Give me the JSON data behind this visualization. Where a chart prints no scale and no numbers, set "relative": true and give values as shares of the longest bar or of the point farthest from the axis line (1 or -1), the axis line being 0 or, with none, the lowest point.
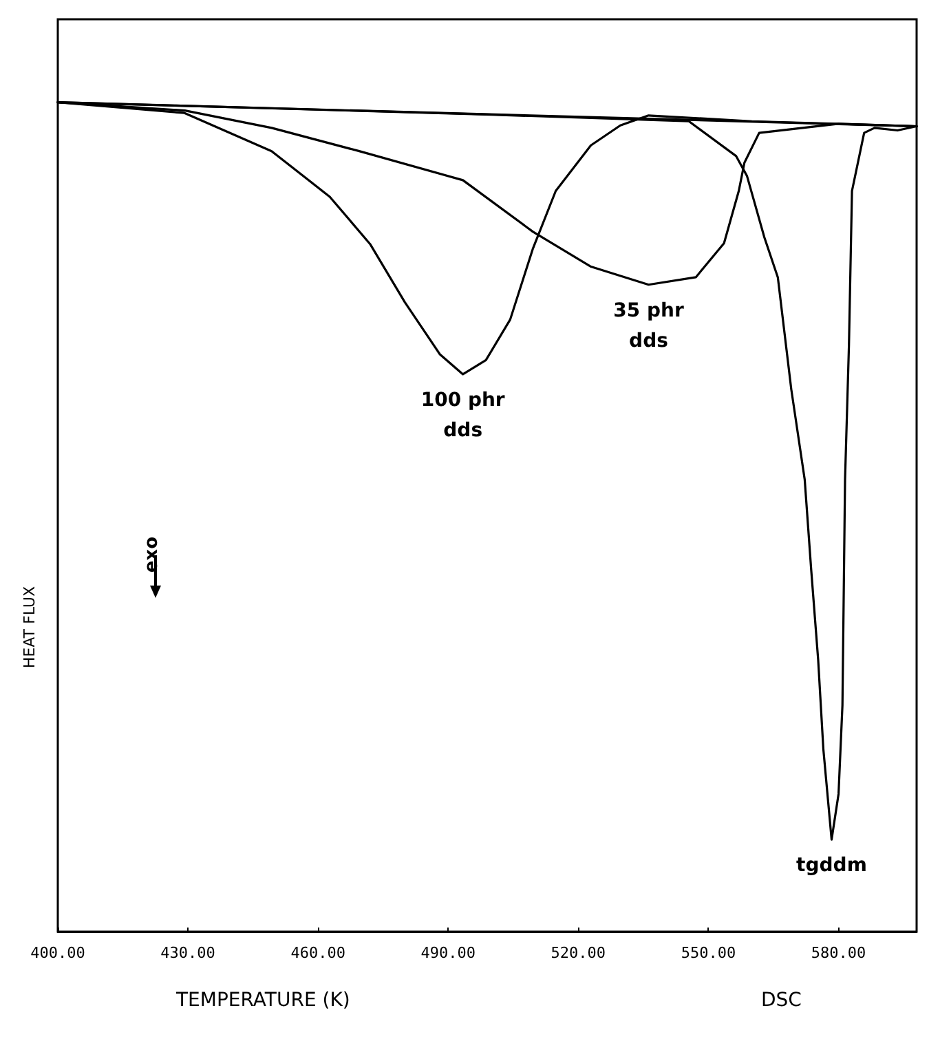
{
  "chart_data": {
    "type": "line",
    "relative": true,
    "xlabel": "TEMPERATURE (K)",
    "ylabel": "HEAT FLUX",
    "annotations": [
      "exo",
      "DSC"
    ],
    "xlim": [
      400,
      598
    ],
    "xticks": [
      {
        "value": 400,
        "label": "400.00"
      },
      {
        "value": 430,
        "label": "430.00"
      },
      {
        "value": 460,
        "label": "460.00"
      },
      {
        "value": 490,
        "label": "490.00"
      },
      {
        "value": 520,
        "label": "520.00"
      },
      {
        "value": 550,
        "label": "550.00"
      },
      {
        "value": 580,
        "label": "580.00"
      }
    ],
    "tick_labels": "x",
    "marker": "none",
    "line_style": "solid",
    "series": [
      {
        "color": "#000000",
        "x": [
          400,
          598
        ],
        "values": [
          1,
          0.971
        ]
      },
      {
        "name": "100 phr\ndds",
        "color": "#000000",
        "x": [
          400,
          429.2,
          449.3,
          462.7,
          472,
          480,
          488.1,
          493.4,
          498.7,
          504.3,
          509.5,
          514.8,
          522.9,
          529.7,
          536.2,
          560,
          598
        ],
        "values": [
          1,
          0.987,
          0.941,
          0.886,
          0.829,
          0.759,
          0.696,
          0.672,
          0.689,
          0.738,
          0.823,
          0.893,
          0.948,
          0.972,
          0.984,
          0.977,
          0.971
        ]
      },
      {
        "name": "35 phr\ndds",
        "color": "#000000",
        "x": [
          400,
          429.3,
          449.3,
          469.5,
          493.4,
          509.5,
          522.8,
          536.2,
          547.1,
          553.6,
          557,
          558.3,
          561.7,
          580,
          598
        ],
        "values": [
          1,
          0.99,
          0.969,
          0.941,
          0.906,
          0.844,
          0.802,
          0.78,
          0.789,
          0.83,
          0.893,
          0.927,
          0.963,
          0.974,
          0.971
        ]
      },
      {
        "name": "tgddm",
        "color": "#000000",
        "x": [
          400,
          500,
          545.5,
          556.4,
          558.9,
          562.9,
          566,
          569.1,
          572.2,
          573.7,
          575.3,
          576.5,
          578.4,
          580,
          580.9,
          581.5,
          582.4,
          583.1,
          585.9,
          588.3,
          593.6,
          598
        ],
        "values": [
          1,
          0.985,
          0.977,
          0.935,
          0.911,
          0.837,
          0.789,
          0.654,
          0.545,
          0.436,
          0.328,
          0.22,
          0.111,
          0.166,
          0.273,
          0.545,
          0.707,
          0.893,
          0.963,
          0.969,
          0.966,
          0.971
        ]
      }
    ]
  }
}
